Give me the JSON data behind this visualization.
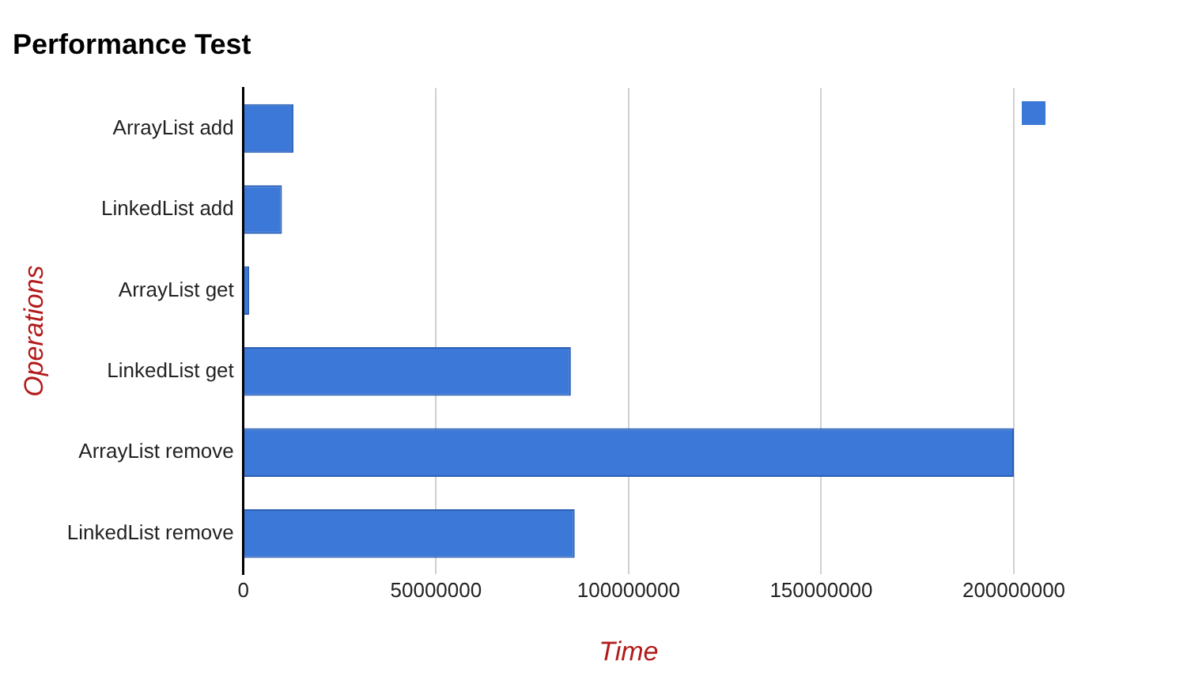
{
  "chart_data": {
    "type": "bar",
    "orientation": "horizontal",
    "title": "Performance Test",
    "xlabel": "Time",
    "ylabel": "Operations",
    "categories": [
      "ArrayList add",
      "LinkedList add",
      "ArrayList get",
      "LinkedList get",
      "ArrayList remove",
      "LinkedList remove"
    ],
    "values": [
      13000000,
      10000000,
      1500000,
      85000000,
      200000000,
      86000000
    ],
    "color": "#3c78d8",
    "xlim": [
      0,
      200000000
    ],
    "xticks": [
      0,
      50000000,
      100000000,
      150000000,
      200000000
    ],
    "grid": "x"
  }
}
